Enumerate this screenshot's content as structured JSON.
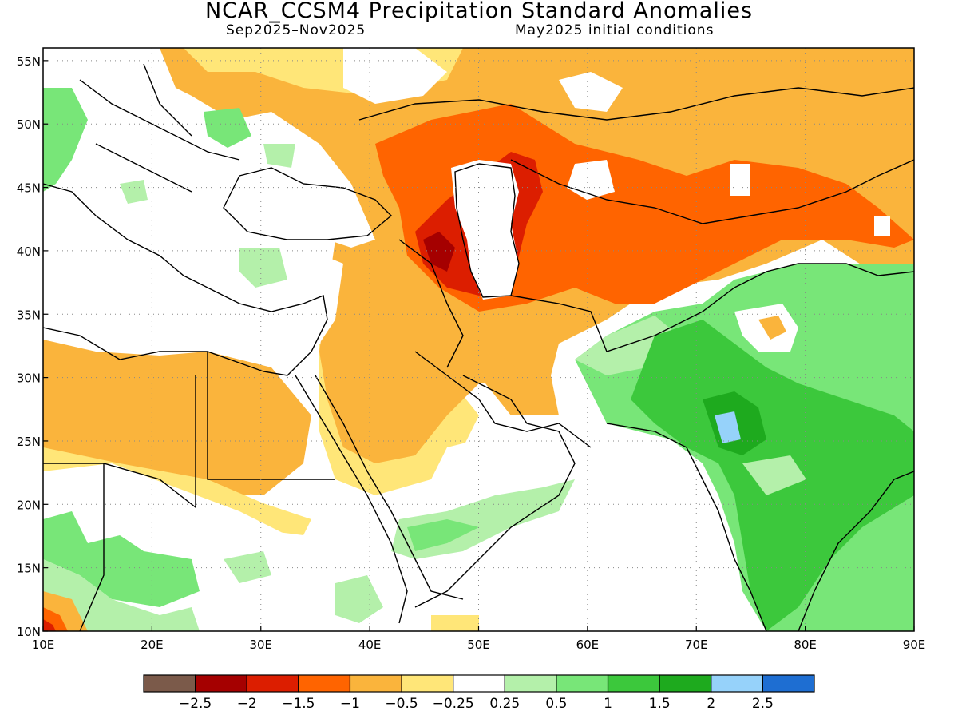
{
  "title": "NCAR_CCSM4 Precipitation Standard Anomalies",
  "subtitle_left": "Sep2025–Nov2025",
  "subtitle_right": "May2025 initial conditions",
  "map": {
    "lon_range": [
      10,
      90
    ],
    "lat_range": [
      10,
      56
    ],
    "lat_ticks": [
      {
        "value": 55,
        "label": "55N"
      },
      {
        "value": 50,
        "label": "50N"
      },
      {
        "value": 45,
        "label": "45N"
      },
      {
        "value": 40,
        "label": "40N"
      },
      {
        "value": 35,
        "label": "35N"
      },
      {
        "value": 30,
        "label": "30N"
      },
      {
        "value": 25,
        "label": "25N"
      },
      {
        "value": 20,
        "label": "20N"
      },
      {
        "value": 15,
        "label": "15N"
      },
      {
        "value": 10,
        "label": "10N"
      }
    ],
    "lon_ticks": [
      {
        "value": 10,
        "label": "10E"
      },
      {
        "value": 20,
        "label": "20E"
      },
      {
        "value": 30,
        "label": "30E"
      },
      {
        "value": 40,
        "label": "40E"
      },
      {
        "value": 50,
        "label": "50E"
      },
      {
        "value": 60,
        "label": "60E"
      },
      {
        "value": 70,
        "label": "70E"
      },
      {
        "value": 80,
        "label": "80E"
      },
      {
        "value": 90,
        "label": "90E"
      }
    ],
    "grid": "dotted"
  },
  "legend": {
    "colors": [
      "#7b5a4a",
      "#a50000",
      "#dc1e00",
      "#ff6400",
      "#fab43c",
      "#ffe678",
      "#ffffff",
      "#b4f0aa",
      "#78e678",
      "#3cc83c",
      "#1eaa1e",
      "#96d2fa",
      "#1e6ed2"
    ],
    "labels": [
      "−2.5",
      "−2",
      "−1.5",
      "−1",
      "−0.5",
      "−0.25",
      "0.25",
      "0.5",
      "1",
      "1.5",
      "2",
      "2.5"
    ]
  }
}
